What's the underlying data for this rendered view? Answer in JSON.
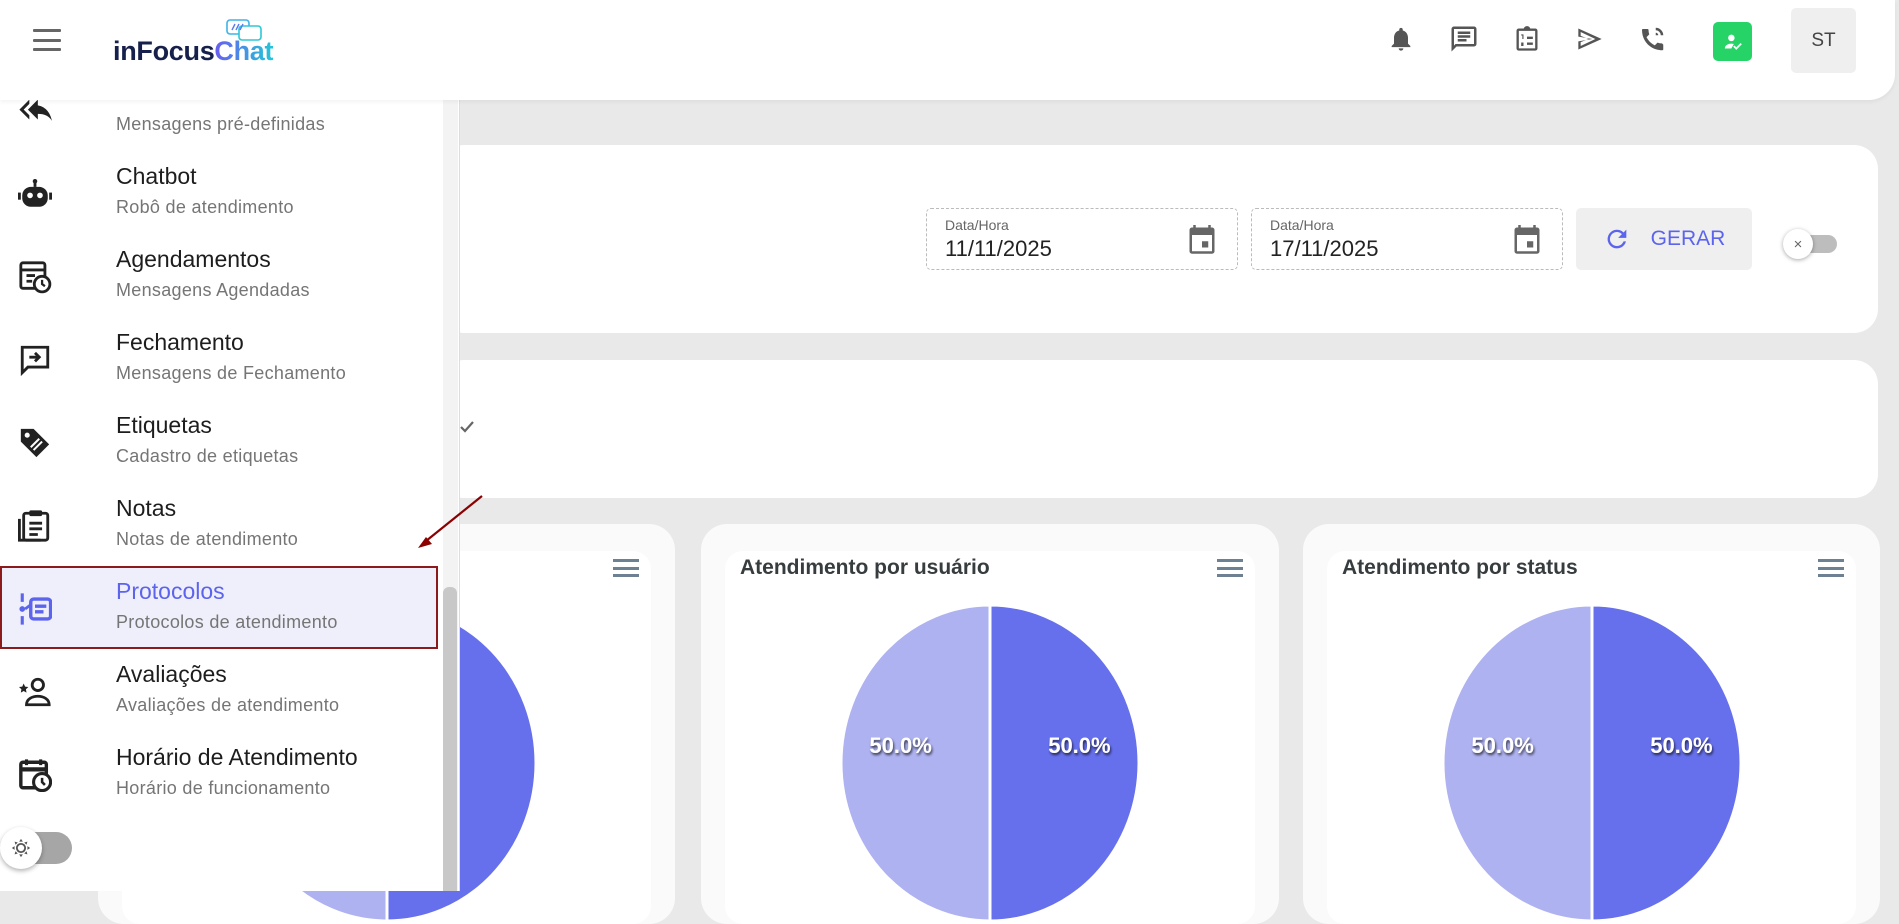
{
  "header": {
    "logo": "inFocusChat",
    "logo_main": "inFocus",
    "logo_accent": "Chat",
    "avatar_initials": "ST",
    "icons": [
      "bell-icon",
      "chat-icon",
      "clipboard-list-icon",
      "send-icon",
      "phone-call-icon"
    ],
    "status_color": "#25d366"
  },
  "sidebar": {
    "items": [
      {
        "title": "",
        "subtitle": "Mensagens pré-definidas",
        "icon": "reply-all-icon"
      },
      {
        "title": "Chatbot",
        "subtitle": "Robô de atendimento",
        "icon": "robot-icon"
      },
      {
        "title": "Agendamentos",
        "subtitle": "Mensagens Agendadas",
        "icon": "schedule-icon"
      },
      {
        "title": "Fechamento",
        "subtitle": "Mensagens de Fechamento",
        "icon": "exit-chat-icon"
      },
      {
        "title": "Etiquetas",
        "subtitle": "Cadastro de etiquetas",
        "icon": "tag-icon"
      },
      {
        "title": "Notas",
        "subtitle": "Notas de atendimento",
        "icon": "notes-icon"
      },
      {
        "title": "Protocolos",
        "subtitle": "Protocolos de atendimento",
        "icon": "protocol-icon",
        "active": true
      },
      {
        "title": "Avaliações",
        "subtitle": "Avaliações de atendimento",
        "icon": "rating-icon"
      },
      {
        "title": "Horário de Atendimento",
        "subtitle": "Horário de funcionamento",
        "icon": "calendar-clock-icon"
      }
    ],
    "accent": "#5c63ec",
    "highlight_border": "#8b1a1a"
  },
  "filters": {
    "start": {
      "label": "Data/Hora",
      "value": "11/11/2025"
    },
    "end": {
      "label": "Data/Hora",
      "value": "17/11/2025"
    },
    "generate_label": "GERAR",
    "toggle_on": false
  },
  "chart_data": [
    {
      "type": "pie",
      "title": "",
      "values": [
        50,
        50
      ],
      "colors": [
        "#aeb2f0",
        "#6670ec"
      ]
    },
    {
      "type": "pie",
      "title": "Atendimento por usuário",
      "values": [
        50,
        50
      ],
      "colors": [
        "#aeb2f0",
        "#6670ec"
      ]
    },
    {
      "type": "pie",
      "title": "Atendimento por status",
      "values": [
        50,
        50
      ],
      "colors": [
        "#aeb2f0",
        "#6670ec"
      ]
    }
  ]
}
